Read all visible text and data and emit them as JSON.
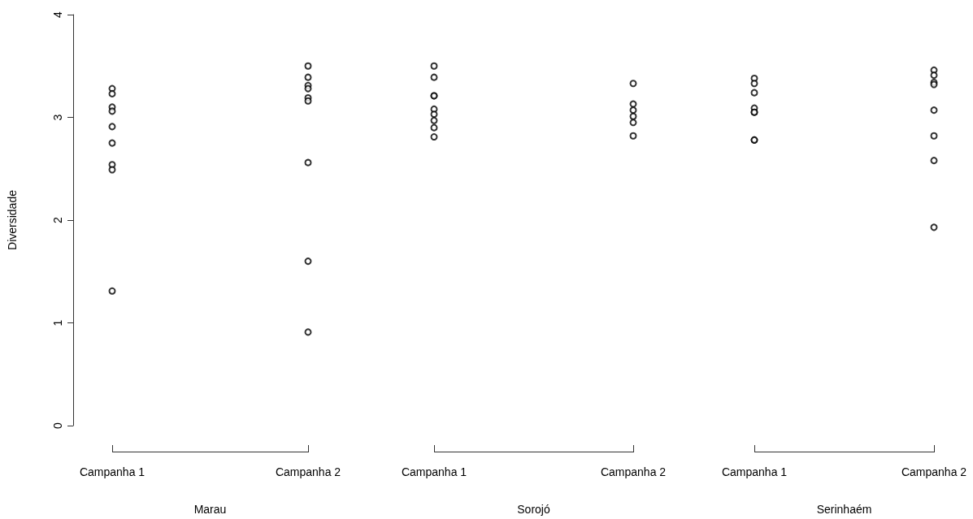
{
  "chart_data": [
    {
      "type": "scatter",
      "ylabel": "Diversidade",
      "xlabel": "Marau",
      "categories": [
        "Campanha 1",
        "Campanha 2"
      ],
      "series": [
        {
          "color": "#000000",
          "x": [
            "Campanha 1",
            "Campanha 1",
            "Campanha 1",
            "Campanha 1",
            "Campanha 1",
            "Campanha 1",
            "Campanha 1",
            "Campanha 1",
            "Campanha 1"
          ],
          "values": [
            3.28,
            3.23,
            3.1,
            3.06,
            2.91,
            2.75,
            2.54,
            2.49,
            1.31
          ]
        },
        {
          "color": "#000000",
          "x": [
            "Campanha 2",
            "Campanha 2",
            "Campanha 2",
            "Campanha 2",
            "Campanha 2",
            "Campanha 2",
            "Campanha 2",
            "Campanha 2",
            "Campanha 2"
          ],
          "values": [
            3.5,
            3.39,
            3.31,
            3.28,
            3.19,
            3.16,
            2.56,
            1.6,
            0.91
          ]
        }
      ],
      "ylim": [
        0,
        4
      ],
      "yticks": [
        0,
        1,
        2,
        3,
        4
      ],
      "marker": "circle",
      "grid": false
    },
    {
      "type": "scatter",
      "xlabel": "Sorojó",
      "categories": [
        "Campanha 1",
        "Campanha 2"
      ],
      "series": [
        {
          "color": "#000000",
          "x": [
            "Campanha 1",
            "Campanha 1",
            "Campanha 1",
            "Campanha 1",
            "Campanha 1",
            "Campanha 1",
            "Campanha 1",
            "Campanha 1",
            "Campanha 1"
          ],
          "values": [
            3.5,
            3.39,
            3.21,
            3.21,
            3.08,
            3.03,
            2.97,
            2.9,
            2.81
          ]
        },
        {
          "color": "#000000",
          "x": [
            "Campanha 2",
            "Campanha 2",
            "Campanha 2",
            "Campanha 2",
            "Campanha 2",
            "Campanha 2"
          ],
          "values": [
            3.33,
            3.13,
            3.07,
            3.01,
            2.95,
            2.82
          ]
        }
      ],
      "ylim": [
        0,
        4
      ],
      "tick_labels": "x",
      "marker": "circle",
      "grid": false
    },
    {
      "type": "scatter",
      "xlabel": "Serinhaém",
      "categories": [
        "Campanha 1",
        "Campanha 2"
      ],
      "series": [
        {
          "color": "#000000",
          "x": [
            "Campanha 1",
            "Campanha 1",
            "Campanha 1",
            "Campanha 1",
            "Campanha 1",
            "Campanha 1",
            "Campanha 1",
            "Campanha 1"
          ],
          "values": [
            3.38,
            3.33,
            3.24,
            3.09,
            3.05,
            3.05,
            2.78,
            2.78
          ]
        },
        {
          "color": "#000000",
          "x": [
            "Campanha 2",
            "Campanha 2",
            "Campanha 2",
            "Campanha 2",
            "Campanha 2",
            "Campanha 2",
            "Campanha 2",
            "Campanha 2"
          ],
          "values": [
            3.46,
            3.41,
            3.34,
            3.32,
            3.07,
            2.82,
            2.58,
            1.93
          ]
        }
      ],
      "ylim": [
        0,
        4
      ],
      "tick_labels": "x",
      "marker": "circle",
      "grid": false
    }
  ]
}
